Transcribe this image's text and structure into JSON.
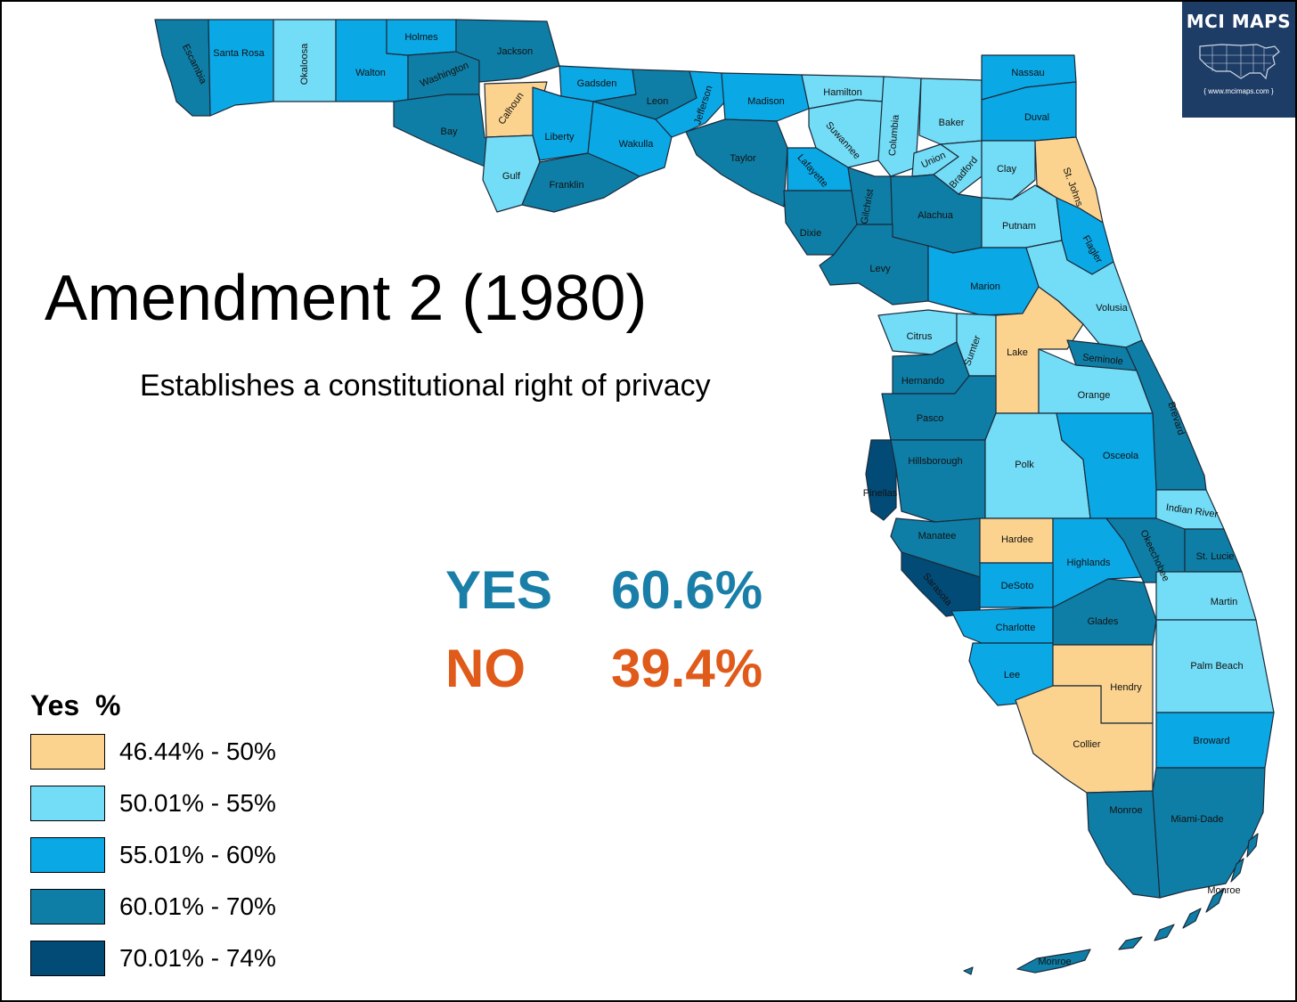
{
  "title": "Amendment 2 (1980)",
  "subtitle": "Establishes a constitutional right of privacy",
  "results": {
    "yes_label": "YES",
    "yes_value": "60.6%",
    "yes_color": "#1a7fa8",
    "no_label": "NO",
    "no_value": "39.4%",
    "no_color": "#e05a1a"
  },
  "legend": {
    "title": "Yes  %",
    "items": [
      {
        "label": "46.44% - 50%",
        "color": "#fcd38e"
      },
      {
        "label": "50.01% - 55%",
        "color": "#73dcf6"
      },
      {
        "label": "55.01% - 60%",
        "color": "#0ba8e6"
      },
      {
        "label": "60.01% - 70%",
        "color": "#0f7ea6"
      },
      {
        "label": "70.01% - 74%",
        "color": "#034b77"
      }
    ]
  },
  "logo": {
    "name": "MCI MAPS",
    "url": "{ www.mcimaps.com }",
    "bg_color": "#1d3c66"
  },
  "counties": [
    {
      "name": "Escambia",
      "bin": 3
    },
    {
      "name": "Santa Rosa",
      "bin": 2
    },
    {
      "name": "Okaloosa",
      "bin": 1
    },
    {
      "name": "Walton",
      "bin": 2
    },
    {
      "name": "Holmes",
      "bin": 2
    },
    {
      "name": "Washington",
      "bin": 3
    },
    {
      "name": "Jackson",
      "bin": 3
    },
    {
      "name": "Bay",
      "bin": 3
    },
    {
      "name": "Calhoun",
      "bin": 0
    },
    {
      "name": "Gadsden",
      "bin": 2
    },
    {
      "name": "Liberty",
      "bin": 2
    },
    {
      "name": "Gulf",
      "bin": 1
    },
    {
      "name": "Franklin",
      "bin": 3
    },
    {
      "name": "Leon",
      "bin": 3
    },
    {
      "name": "Wakulla",
      "bin": 2
    },
    {
      "name": "Jefferson",
      "bin": 2
    },
    {
      "name": "Madison",
      "bin": 2
    },
    {
      "name": "Taylor",
      "bin": 3
    },
    {
      "name": "Hamilton",
      "bin": 1
    },
    {
      "name": "Suwannee",
      "bin": 1
    },
    {
      "name": "Lafayette",
      "bin": 2
    },
    {
      "name": "Columbia",
      "bin": 1
    },
    {
      "name": "Baker",
      "bin": 1
    },
    {
      "name": "Union",
      "bin": 1
    },
    {
      "name": "Bradford",
      "bin": 1
    },
    {
      "name": "Nassau",
      "bin": 2
    },
    {
      "name": "Duval",
      "bin": 2
    },
    {
      "name": "Clay",
      "bin": 1
    },
    {
      "name": "St. Johns",
      "bin": 0
    },
    {
      "name": "Dixie",
      "bin": 3
    },
    {
      "name": "Gilchrist",
      "bin": 3
    },
    {
      "name": "Alachua",
      "bin": 3
    },
    {
      "name": "Putnam",
      "bin": 1
    },
    {
      "name": "Flagler",
      "bin": 2
    },
    {
      "name": "Levy",
      "bin": 3
    },
    {
      "name": "Marion",
      "bin": 2
    },
    {
      "name": "Volusia",
      "bin": 1
    },
    {
      "name": "Citrus",
      "bin": 1
    },
    {
      "name": "Sumter",
      "bin": 1
    },
    {
      "name": "Lake",
      "bin": 0
    },
    {
      "name": "Seminole",
      "bin": 3
    },
    {
      "name": "Hernando",
      "bin": 3
    },
    {
      "name": "Orange",
      "bin": 1
    },
    {
      "name": "Brevard",
      "bin": 3
    },
    {
      "name": "Pasco",
      "bin": 3
    },
    {
      "name": "Pinellas",
      "bin": 4
    },
    {
      "name": "Hillsborough",
      "bin": 3
    },
    {
      "name": "Polk",
      "bin": 1
    },
    {
      "name": "Osceola",
      "bin": 2
    },
    {
      "name": "Indian River",
      "bin": 1
    },
    {
      "name": "Manatee",
      "bin": 3
    },
    {
      "name": "Hardee",
      "bin": 0
    },
    {
      "name": "Highlands",
      "bin": 2
    },
    {
      "name": "Okeechobee",
      "bin": 3
    },
    {
      "name": "St. Lucie",
      "bin": 3
    },
    {
      "name": "Sarasota",
      "bin": 4
    },
    {
      "name": "DeSoto",
      "bin": 2
    },
    {
      "name": "Martin",
      "bin": 1
    },
    {
      "name": "Charlotte",
      "bin": 2
    },
    {
      "name": "Glades",
      "bin": 3
    },
    {
      "name": "Palm Beach",
      "bin": 1
    },
    {
      "name": "Lee",
      "bin": 2
    },
    {
      "name": "Hendry",
      "bin": 0
    },
    {
      "name": "Collier",
      "bin": 0
    },
    {
      "name": "Broward",
      "bin": 2
    },
    {
      "name": "Monroe",
      "bin": 3
    },
    {
      "name": "Miami-Dade",
      "bin": 3
    }
  ],
  "map_annotations": [
    "Monroe",
    "Monroe"
  ]
}
